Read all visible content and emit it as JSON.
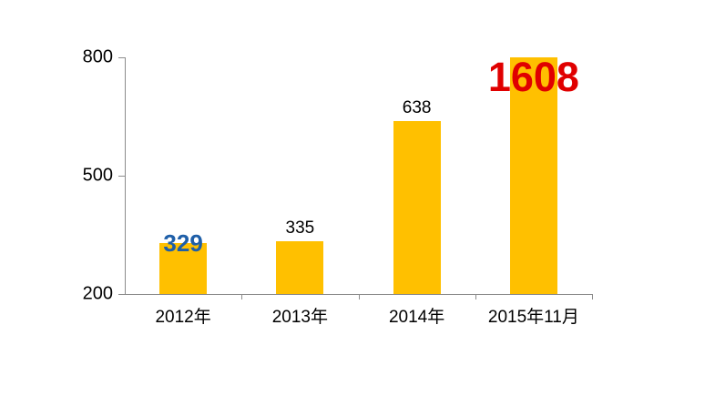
{
  "chart_data": {
    "type": "bar",
    "title": "",
    "xlabel": "",
    "ylabel": "",
    "categories": [
      "2012年",
      "2013年",
      "2014年",
      "2015年11月"
    ],
    "values": [
      329,
      335,
      638,
      1608
    ],
    "ylim": [
      200,
      800
    ],
    "yticks": [
      200,
      500,
      800
    ],
    "grid": false,
    "legend": false,
    "bars_clipped_at_ymax": true,
    "bar_color": "#FFC000",
    "axis_color": "#8C8C8C",
    "tick_label_color": "#000000",
    "value_labels": [
      {
        "text": "329",
        "color": "#1F5FA8",
        "bold": true,
        "font_size": 26,
        "placement": "overlap-bar-top",
        "dy": 0
      },
      {
        "text": "335",
        "color": "#000000",
        "bold": false,
        "font_size": 19,
        "placement": "above-bar",
        "dy": 0
      },
      {
        "text": "638",
        "color": "#000000",
        "bold": false,
        "font_size": 19,
        "placement": "above-bar",
        "dy": 0
      },
      {
        "text": "1608",
        "color": "#E00000",
        "bold": true,
        "font_size": 45,
        "placement": "overlap-bar-top",
        "dy": 21
      }
    ]
  }
}
